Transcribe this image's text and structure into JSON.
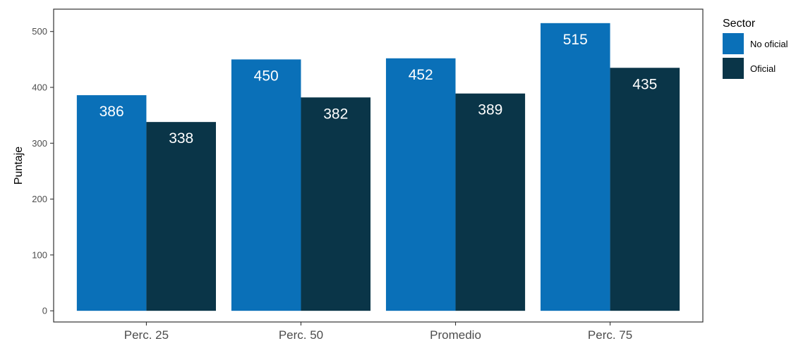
{
  "chart_data": {
    "type": "bar",
    "title": "",
    "xlabel": "",
    "ylabel": "Puntaje",
    "categories": [
      "Perc. 25",
      "Perc. 50",
      "Promedio",
      "Perc. 75"
    ],
    "series": [
      {
        "name": "No oficial",
        "color": "#0A70B8",
        "values": [
          386,
          450,
          452,
          515
        ]
      },
      {
        "name": "Oficial",
        "color": "#0A3548",
        "values": [
          338,
          382,
          389,
          435
        ]
      }
    ],
    "ylim": [
      -20,
      540
    ],
    "yticks": [
      0,
      100,
      200,
      300,
      400,
      500
    ],
    "legend": {
      "title": "Sector",
      "position": "right"
    },
    "grid": false
  }
}
